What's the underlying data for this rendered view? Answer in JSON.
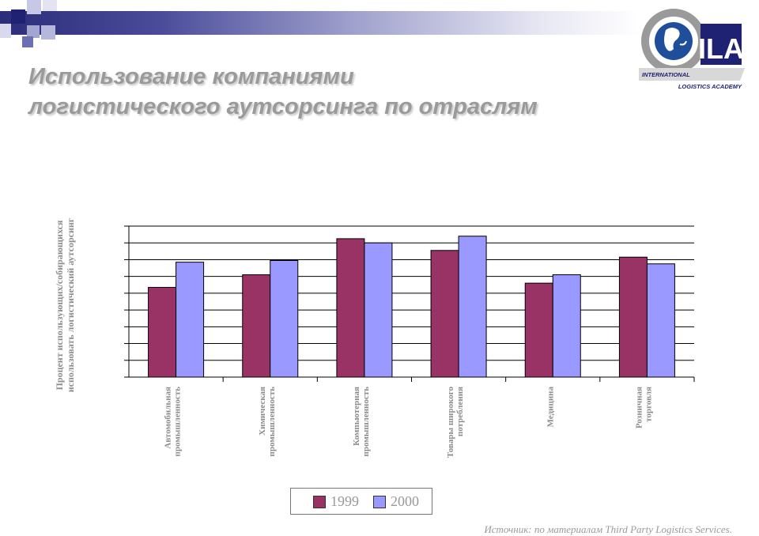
{
  "title_line1": "Использование компаниями",
  "title_line2": "логистического аутсорсинга по отраслям",
  "logo": {
    "mark": "ILA",
    "line1": "INTERNATIONAL",
    "line2": "LOGISTICS ACADEMY"
  },
  "source": "Источник: по материалам Third Party Logistics Services.",
  "colors": {
    "s1999": "#993366",
    "s2000": "#9999ff",
    "band": "#2b2d7a"
  },
  "chart_data": {
    "type": "bar",
    "ylabel": "Процент использующих/собирающихся использовать логистический аутсорсинг",
    "ylim": [
      0,
      90
    ],
    "ytick_step": 10,
    "grid": true,
    "legend": "bottom",
    "categories": [
      [
        "Автомобильная",
        "промышленность"
      ],
      [
        "Химическая",
        "промышленность"
      ],
      [
        "Компьютерная",
        "промышленность"
      ],
      [
        "Товары широкого",
        "потребления"
      ],
      [
        "Медицина"
      ],
      [
        "Розничная",
        "торговля"
      ]
    ],
    "series": [
      {
        "name": "1999",
        "values": [
          53.5,
          61,
          82.5,
          75.5,
          56,
          71.5
        ]
      },
      {
        "name": "2000",
        "values": [
          68.5,
          69.5,
          80,
          84,
          61,
          67.5
        ]
      }
    ]
  }
}
